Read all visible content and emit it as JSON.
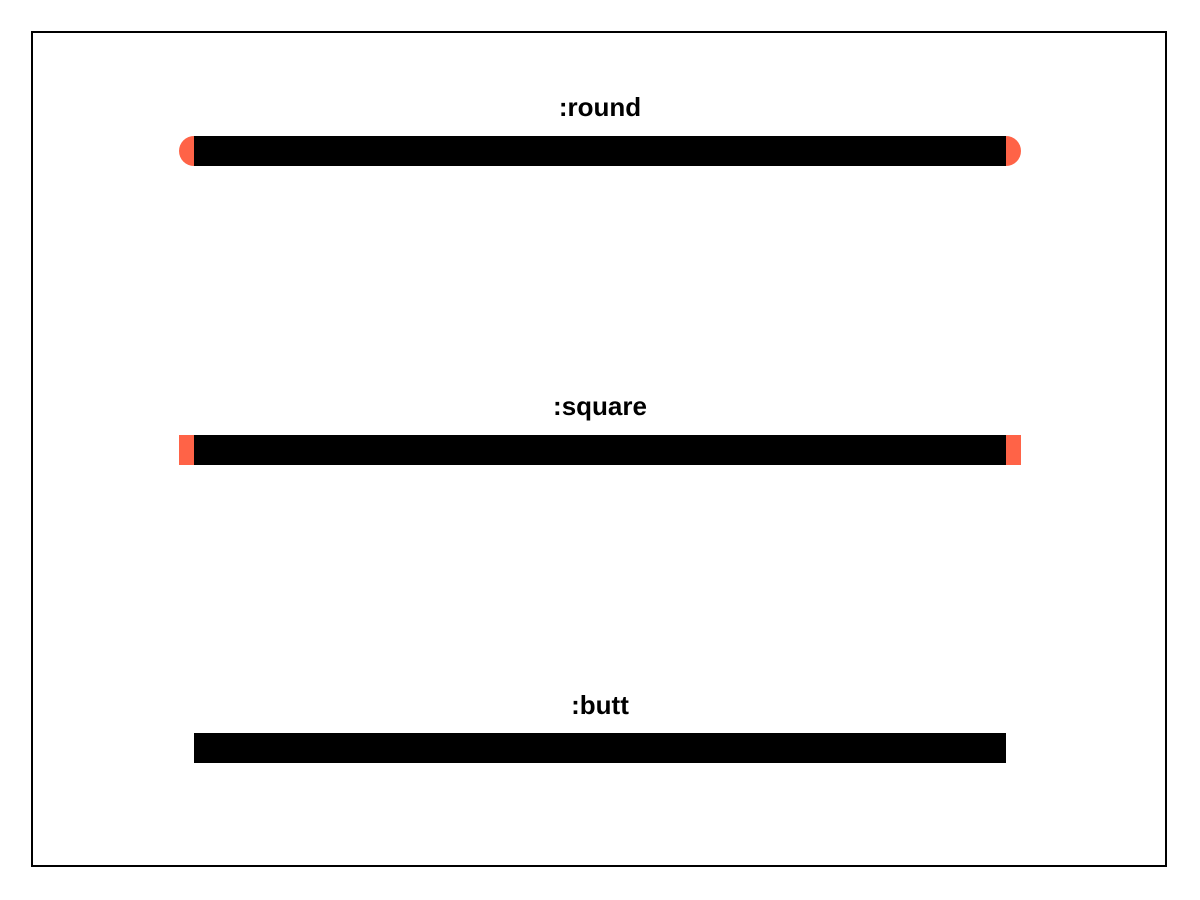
{
  "colors": {
    "background": "#ffffff",
    "frame": "#000000",
    "stroke": "#000000",
    "cap_highlight": "#ff6347"
  },
  "demos": [
    {
      "label": ":round",
      "cap": "round"
    },
    {
      "label": ":square",
      "cap": "square"
    },
    {
      "label": ":butt",
      "cap": "butt"
    }
  ]
}
